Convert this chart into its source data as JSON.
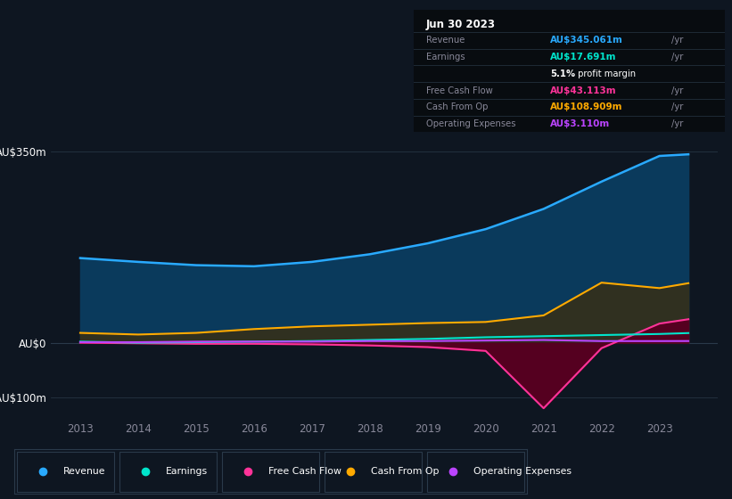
{
  "background_color": "#0e1621",
  "plot_bg_color": "#0e1621",
  "years": [
    2013,
    2014,
    2015,
    2016,
    2017,
    2018,
    2019,
    2020,
    2021,
    2022,
    2023,
    2023.5
  ],
  "revenue": [
    155,
    148,
    142,
    140,
    148,
    162,
    182,
    208,
    245,
    295,
    342,
    345
  ],
  "earnings": [
    2,
    0,
    1,
    2,
    3,
    5,
    7,
    10,
    12,
    14,
    16,
    17.7
  ],
  "free_cash_flow": [
    0,
    -1,
    -2,
    -2,
    -3,
    -5,
    -8,
    -15,
    -120,
    -10,
    35,
    43
  ],
  "cash_from_op": [
    18,
    15,
    18,
    25,
    30,
    33,
    36,
    38,
    50,
    110,
    100,
    109
  ],
  "operating_expenses": [
    1,
    1,
    2,
    2,
    2,
    3,
    3,
    4,
    5,
    3,
    3,
    3.1
  ],
  "revenue_color": "#29aaff",
  "earnings_color": "#00e5cc",
  "free_cash_flow_color": "#ff3399",
  "cash_from_op_color": "#ffaa00",
  "operating_expenses_color": "#bb44ff",
  "revenue_fill": "#0a3a5c",
  "cash_from_op_fill": "#303020",
  "fcf_fill": "#550020",
  "ylim": [
    -140,
    390
  ],
  "yticks": [
    350,
    0,
    -100
  ],
  "ytick_labels": [
    "AU$350m",
    "AU$0",
    "-AU$100m"
  ],
  "info_box": {
    "date": "Jun 30 2023",
    "rows": [
      {
        "label": "Revenue",
        "value": "AU$345.061m",
        "color": "#29aaff",
        "suffix": "/yr"
      },
      {
        "label": "Earnings",
        "value": "AU$17.691m",
        "color": "#00e5cc",
        "suffix": "/yr"
      },
      {
        "label": "",
        "value": "5.1%",
        "color": "#ffffff",
        "suffix": " profit margin"
      },
      {
        "label": "Free Cash Flow",
        "value": "AU$43.113m",
        "color": "#ff3399",
        "suffix": "/yr"
      },
      {
        "label": "Cash From Op",
        "value": "AU$108.909m",
        "color": "#ffaa00",
        "suffix": "/yr"
      },
      {
        "label": "Operating Expenses",
        "value": "AU$3.110m",
        "color": "#bb44ff",
        "suffix": "/yr"
      }
    ]
  },
  "legend": [
    {
      "label": "Revenue",
      "color": "#29aaff"
    },
    {
      "label": "Earnings",
      "color": "#00e5cc"
    },
    {
      "label": "Free Cash Flow",
      "color": "#ff3399"
    },
    {
      "label": "Cash From Op",
      "color": "#ffaa00"
    },
    {
      "label": "Operating Expenses",
      "color": "#bb44ff"
    }
  ]
}
